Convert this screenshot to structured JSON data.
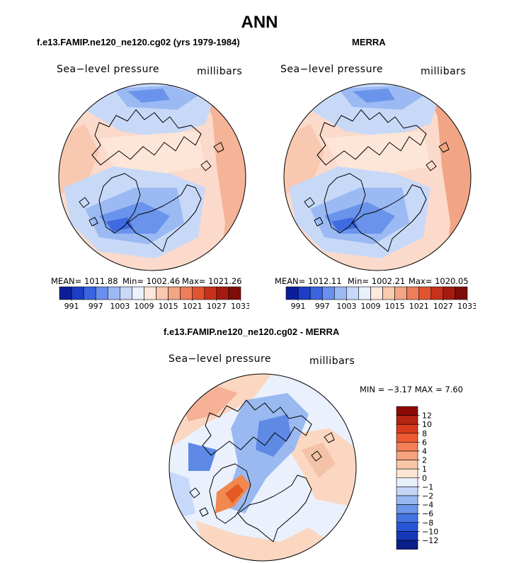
{
  "title": "ANN",
  "panels": [
    {
      "title": "f.e13.FAMIP.ne120_ne120.cg02 (yrs 1979-1984)",
      "left_label": "Sea−level pressure",
      "right_label": "millibars",
      "stats": {
        "mean": "MEAN= 1011.88",
        "min": "Min= 1002.46",
        "max": "Max= 1021.26"
      }
    },
    {
      "title": "MERRA",
      "left_label": "Sea−level pressure",
      "right_label": "millibars",
      "stats": {
        "mean": "MEAN= 1012.11",
        "min": "Min= 1002.21",
        "max": "Max= 1020.05"
      }
    },
    {
      "title": "f.e13.FAMIP.ne120_ne120.cg02 - MERRA",
      "left_label": "Sea−level pressure",
      "right_label": "millibars",
      "stats": {
        "minmax": "MIN =   −3.17 MAX =    7.60"
      }
    }
  ],
  "chart_data": [
    {
      "type": "heatmap",
      "title": "f.e13.FAMIP.ne120_ne120.cg02 (yrs 1979-1984)",
      "variable": "Sea-level pressure",
      "units": "millibars",
      "projection": "polar stereographic (north)",
      "mean": 1011.88,
      "min": 1002.46,
      "max": 1021.26,
      "colorbar_ticks": [
        "991",
        "997",
        "1003",
        "1009",
        "1015",
        "1021",
        "1027",
        "1033"
      ],
      "colorbar_colors": [
        "#0b1e98",
        "#1c3dc6",
        "#3a64e0",
        "#6890ee",
        "#9cb8f5",
        "#c7d9fa",
        "#e9f1fd",
        "#fde8dc",
        "#f9c9b0",
        "#f4a585",
        "#ee7d5a",
        "#e2542f",
        "#c8321a",
        "#a41a0f",
        "#7e0c08"
      ]
    },
    {
      "type": "heatmap",
      "title": "MERRA",
      "variable": "Sea-level pressure",
      "units": "millibars",
      "projection": "polar stereographic (north)",
      "mean": 1012.11,
      "min": 1002.21,
      "max": 1020.05,
      "colorbar_ticks": [
        "991",
        "997",
        "1003",
        "1009",
        "1015",
        "1021",
        "1027",
        "1033"
      ],
      "colorbar_colors": [
        "#0b1e98",
        "#1c3dc6",
        "#3a64e0",
        "#6890ee",
        "#9cb8f5",
        "#c7d9fa",
        "#e9f1fd",
        "#fde8dc",
        "#f9c9b0",
        "#f4a585",
        "#ee7d5a",
        "#e2542f",
        "#c8321a",
        "#a41a0f",
        "#7e0c08"
      ]
    },
    {
      "type": "heatmap",
      "title": "f.e13.FAMIP.ne120_ne120.cg02 - MERRA",
      "variable": "Sea-level pressure",
      "units": "millibars",
      "projection": "polar stereographic (north)",
      "min": -3.17,
      "max": 7.6,
      "colorbar_ticks": [
        "12",
        "10",
        "8",
        "6",
        "4",
        "2",
        "1",
        "0",
        "−1",
        "−2",
        "−4",
        "−6",
        "−8",
        "−10",
        "−12"
      ],
      "colorbar_colors": [
        "#8e0a06",
        "#b52410",
        "#d83b1c",
        "#ef5a32",
        "#f47f57",
        "#f7a47e",
        "#fac6a6",
        "#fde4d2",
        "#e8f0fc",
        "#c4d6f6",
        "#98b8f1",
        "#6c96ea",
        "#4474e2",
        "#2656d6",
        "#1538b8",
        "#0a1f8a"
      ]
    }
  ]
}
